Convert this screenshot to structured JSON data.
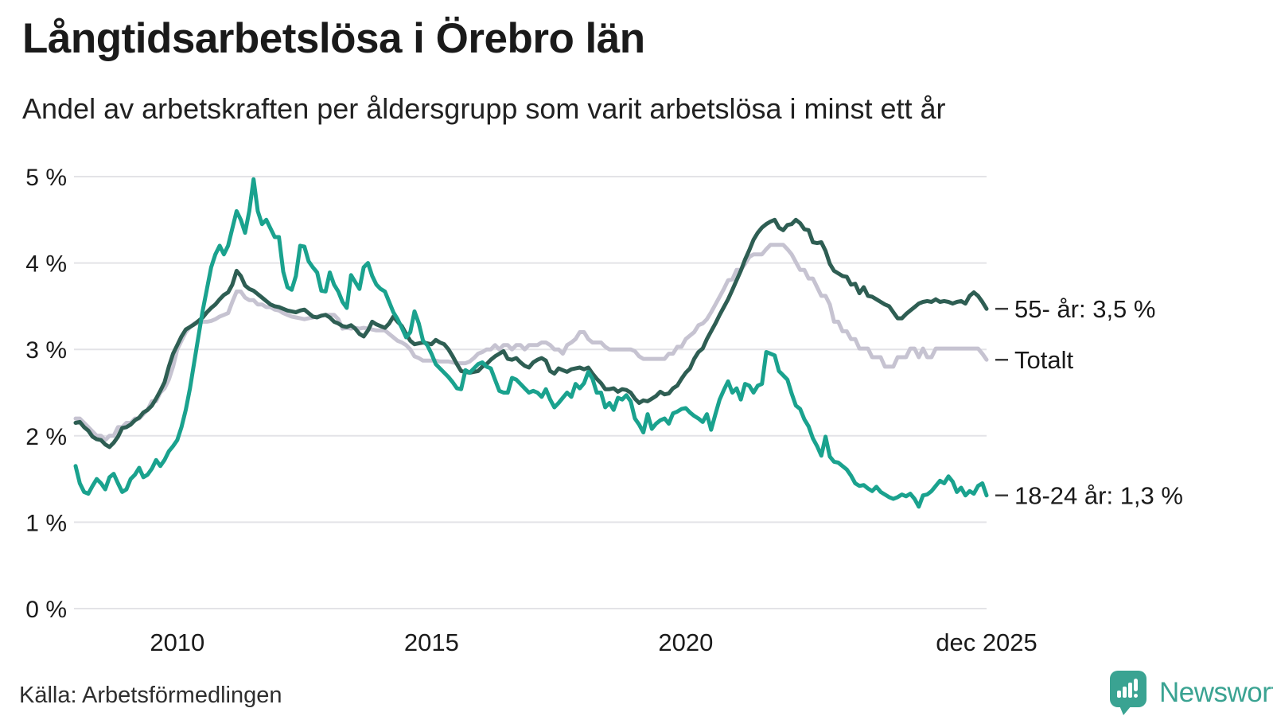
{
  "header": {
    "title": "Långtidsarbetslösa i Örebro län",
    "subtitle": "Andel av arbetskraften per åldersgrupp som varit arbetslösa i minst ett år"
  },
  "footer": {
    "source": "Källa: Arbetsförmedlingen",
    "brand_name": "Newsworthy"
  },
  "colors": {
    "series_55": "#2e5e53",
    "series_total": "#c6c3d1",
    "series_18_24": "#1aa28e",
    "gridline": "#e3e3e7",
    "text": "#1a1a1a",
    "annotation_dash": "#3c3c3c",
    "brand_teal": "#3aa392"
  },
  "chart_data": {
    "type": "line",
    "title": "Långtidsarbetslösa i Örebro län",
    "subtitle": "Andel av arbetskraften per åldersgrupp som varit arbetslösa i minst ett år",
    "x_start": "2008-01",
    "x_end": "2025-12",
    "x_frequency": "monthly",
    "ylim": [
      0,
      5
    ],
    "grid": true,
    "legend_position": "end-of-line-labels",
    "y_tick_labels": [
      "0 %",
      "1 %",
      "2 %",
      "3 %",
      "4 %",
      "5 %"
    ],
    "x_ticks": [
      {
        "label": "2010",
        "month_index": 24
      },
      {
        "label": "2015",
        "month_index": 84
      },
      {
        "label": "2020",
        "month_index": 144
      },
      {
        "label": "dec 2025",
        "month_index": 215
      }
    ],
    "series": [
      {
        "name": "Totalt",
        "end_label": "Totalt",
        "end_value": 2.88,
        "color": "#c6c3d1",
        "values": [
          2.2,
          2.2,
          2.15,
          2.1,
          2.05,
          2.0,
          2.0,
          1.95,
          2.0,
          2.0,
          2.1,
          2.1,
          2.15,
          2.15,
          2.2,
          2.2,
          2.25,
          2.3,
          2.4,
          2.4,
          2.5,
          2.55,
          2.65,
          2.8,
          3.0,
          3.1,
          3.2,
          3.26,
          3.3,
          3.3,
          3.32,
          3.32,
          3.33,
          3.35,
          3.38,
          3.4,
          3.42,
          3.55,
          3.67,
          3.67,
          3.6,
          3.57,
          3.57,
          3.52,
          3.52,
          3.49,
          3.49,
          3.46,
          3.45,
          3.42,
          3.4,
          3.38,
          3.37,
          3.36,
          3.35,
          3.36,
          3.37,
          3.38,
          3.39,
          3.4,
          3.4,
          3.4,
          3.35,
          3.24,
          3.25,
          3.24,
          3.25,
          3.24,
          3.25,
          3.24,
          3.23,
          3.22,
          3.22,
          3.22,
          3.18,
          3.14,
          3.1,
          3.08,
          3.05,
          3.0,
          2.92,
          2.9,
          2.87,
          2.87,
          2.87,
          2.87,
          2.86,
          2.86,
          2.86,
          2.85,
          2.84,
          2.84,
          2.84,
          2.86,
          2.9,
          2.95,
          2.97,
          3.0,
          3.0,
          3.05,
          3.0,
          3.05,
          3.05,
          3.0,
          3.05,
          3.05,
          3.0,
          3.05,
          3.05,
          3.05,
          3.08,
          3.08,
          3.05,
          3.0,
          3.0,
          2.95,
          3.05,
          3.08,
          3.12,
          3.2,
          3.2,
          3.12,
          3.08,
          3.08,
          3.08,
          3.03,
          3.0,
          3.0,
          3.0,
          3.0,
          3.0,
          3.0,
          2.98,
          2.92,
          2.89,
          2.89,
          2.89,
          2.89,
          2.89,
          2.89,
          2.95,
          2.95,
          3.03,
          3.03,
          3.12,
          3.16,
          3.2,
          3.28,
          3.3,
          3.35,
          3.43,
          3.52,
          3.61,
          3.7,
          3.8,
          3.81,
          3.92,
          3.92,
          3.99,
          4.07,
          4.1,
          4.1,
          4.1,
          4.16,
          4.21,
          4.21,
          4.21,
          4.21,
          4.16,
          4.1,
          4.01,
          3.92,
          3.92,
          3.82,
          3.82,
          3.72,
          3.62,
          3.62,
          3.52,
          3.32,
          3.32,
          3.21,
          3.21,
          3.12,
          3.12,
          3.01,
          3.01,
          3.01,
          2.91,
          2.91,
          2.91,
          2.8,
          2.8,
          2.8,
          2.91,
          2.91,
          2.91,
          3.01,
          3.01,
          2.91,
          3.01,
          2.91,
          2.91,
          3.01,
          3.01,
          3.01,
          3.01,
          3.01,
          3.01,
          3.01,
          3.01,
          3.01,
          3.01,
          3.01,
          2.95,
          2.88
        ]
      },
      {
        "name": "55- år",
        "end_label": "55- år: 3,5 %",
        "end_value": 3.5,
        "color": "#2e5e53",
        "values": [
          2.15,
          2.16,
          2.1,
          2.06,
          1.99,
          1.96,
          1.95,
          1.9,
          1.87,
          1.92,
          1.99,
          2.09,
          2.1,
          2.13,
          2.18,
          2.21,
          2.27,
          2.3,
          2.35,
          2.43,
          2.52,
          2.62,
          2.8,
          2.95,
          3.05,
          3.15,
          3.23,
          3.26,
          3.29,
          3.33,
          3.37,
          3.43,
          3.48,
          3.52,
          3.58,
          3.63,
          3.66,
          3.75,
          3.91,
          3.85,
          3.74,
          3.7,
          3.68,
          3.64,
          3.6,
          3.56,
          3.52,
          3.5,
          3.49,
          3.47,
          3.45,
          3.44,
          3.43,
          3.45,
          3.46,
          3.42,
          3.38,
          3.37,
          3.39,
          3.4,
          3.37,
          3.32,
          3.3,
          3.27,
          3.26,
          3.28,
          3.24,
          3.18,
          3.15,
          3.22,
          3.32,
          3.29,
          3.27,
          3.25,
          3.3,
          3.38,
          3.32,
          3.27,
          3.18,
          3.1,
          3.06,
          3.07,
          3.08,
          3.07,
          3.06,
          3.11,
          3.08,
          3.06,
          3.0,
          2.92,
          2.83,
          2.75,
          2.74,
          2.73,
          2.74,
          2.75,
          2.8,
          2.83,
          2.88,
          2.92,
          2.95,
          2.98,
          2.89,
          2.88,
          2.9,
          2.85,
          2.81,
          2.79,
          2.85,
          2.88,
          2.9,
          2.87,
          2.75,
          2.72,
          2.78,
          2.76,
          2.74,
          2.77,
          2.78,
          2.79,
          2.77,
          2.79,
          2.72,
          2.66,
          2.61,
          2.54,
          2.54,
          2.55,
          2.51,
          2.54,
          2.53,
          2.5,
          2.43,
          2.38,
          2.41,
          2.4,
          2.43,
          2.46,
          2.51,
          2.48,
          2.49,
          2.55,
          2.58,
          2.66,
          2.73,
          2.78,
          2.89,
          2.97,
          3.01,
          3.12,
          3.21,
          3.3,
          3.4,
          3.49,
          3.58,
          3.69,
          3.8,
          3.91,
          4.04,
          4.15,
          4.27,
          4.35,
          4.41,
          4.45,
          4.48,
          4.5,
          4.41,
          4.38,
          4.44,
          4.45,
          4.5,
          4.46,
          4.39,
          4.38,
          4.24,
          4.23,
          4.24,
          4.14,
          3.99,
          3.91,
          3.88,
          3.85,
          3.84,
          3.75,
          3.76,
          3.65,
          3.72,
          3.62,
          3.61,
          3.58,
          3.55,
          3.52,
          3.5,
          3.43,
          3.36,
          3.36,
          3.41,
          3.45,
          3.49,
          3.53,
          3.55,
          3.56,
          3.55,
          3.58,
          3.55,
          3.56,
          3.55,
          3.53,
          3.55,
          3.56,
          3.53,
          3.62,
          3.66,
          3.62,
          3.55,
          3.47
        ]
      },
      {
        "name": "18-24 år",
        "end_label": "18-24 år: 1,3 %",
        "end_value": 1.3,
        "color": "#1aa28e",
        "values": [
          1.65,
          1.45,
          1.35,
          1.33,
          1.42,
          1.5,
          1.45,
          1.38,
          1.52,
          1.56,
          1.45,
          1.35,
          1.38,
          1.5,
          1.55,
          1.63,
          1.52,
          1.55,
          1.62,
          1.72,
          1.65,
          1.72,
          1.82,
          1.88,
          1.95,
          2.1,
          2.3,
          2.55,
          2.85,
          3.15,
          3.45,
          3.7,
          3.95,
          4.1,
          4.2,
          4.1,
          4.2,
          4.4,
          4.6,
          4.5,
          4.35,
          4.6,
          4.97,
          4.6,
          4.45,
          4.5,
          4.4,
          4.3,
          4.3,
          3.9,
          3.72,
          3.69,
          3.85,
          4.2,
          4.19,
          4.02,
          3.95,
          3.89,
          3.68,
          3.67,
          3.89,
          3.75,
          3.67,
          3.55,
          3.48,
          3.86,
          3.78,
          3.7,
          3.95,
          4.0,
          3.85,
          3.75,
          3.7,
          3.67,
          3.55,
          3.43,
          3.35,
          3.25,
          3.14,
          3.2,
          3.44,
          3.3,
          3.1,
          3.05,
          2.95,
          2.83,
          2.78,
          2.73,
          2.68,
          2.62,
          2.55,
          2.54,
          2.76,
          2.73,
          2.78,
          2.83,
          2.85,
          2.8,
          2.78,
          2.65,
          2.52,
          2.5,
          2.5,
          2.67,
          2.65,
          2.6,
          2.55,
          2.5,
          2.52,
          2.5,
          2.45,
          2.54,
          2.42,
          2.33,
          2.38,
          2.44,
          2.5,
          2.45,
          2.6,
          2.55,
          2.61,
          2.74,
          2.66,
          2.5,
          2.5,
          2.33,
          2.38,
          2.3,
          2.44,
          2.42,
          2.47,
          2.4,
          2.2,
          2.13,
          2.04,
          2.25,
          2.08,
          2.14,
          2.18,
          2.2,
          2.14,
          2.26,
          2.28,
          2.31,
          2.32,
          2.27,
          2.23,
          2.2,
          2.16,
          2.25,
          2.07,
          2.25,
          2.42,
          2.53,
          2.63,
          2.5,
          2.55,
          2.42,
          2.6,
          2.58,
          2.5,
          2.58,
          2.6,
          2.97,
          2.95,
          2.93,
          2.75,
          2.7,
          2.65,
          2.49,
          2.35,
          2.31,
          2.19,
          2.11,
          1.97,
          1.88,
          1.77,
          1.99,
          1.76,
          1.7,
          1.69,
          1.65,
          1.61,
          1.54,
          1.45,
          1.42,
          1.43,
          1.39,
          1.36,
          1.41,
          1.35,
          1.32,
          1.29,
          1.27,
          1.29,
          1.32,
          1.3,
          1.33,
          1.27,
          1.18,
          1.31,
          1.32,
          1.36,
          1.42,
          1.48,
          1.45,
          1.53,
          1.47,
          1.35,
          1.4,
          1.31,
          1.36,
          1.33,
          1.42,
          1.45,
          1.31
        ]
      }
    ]
  }
}
